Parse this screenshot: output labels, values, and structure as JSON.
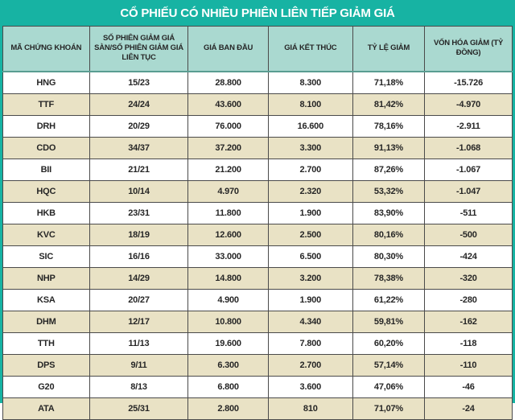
{
  "title": "CỔ PHIẾU CÓ NHIỀU PHIÊN LIÊN TIẾP GIẢM GIÁ",
  "colors": {
    "frame_teal": "#17b3a3",
    "title_text": "#ffffff",
    "header_bg": "#aad9d0",
    "row_bg": "#ffffff",
    "row_alt_bg": "#e9e2c5",
    "cell_border": "#4a4a4a",
    "text": "#262626"
  },
  "chart_data": {
    "type": "table",
    "title": "CỔ PHIẾU CÓ NHIỀU PHIÊN LIÊN TIẾP GIẢM GIÁ",
    "columns": [
      "MÃ CHỨNG KHOÁN",
      "SỐ PHIÊN GIẢM GIÁ SÀN/SỐ PHIÊN GIẢM GIÁ LIÊN TỤC",
      "GIÁ BAN ĐẦU",
      "GIÁ KẾT THÚC",
      "TỶ LỆ GIẢM",
      "VỐN HÓA GIẢM (TỶ ĐỒNG)"
    ],
    "rows": [
      [
        "HNG",
        "15/23",
        "28.800",
        "8.300",
        "71,18%",
        "-15.726"
      ],
      [
        "TTF",
        "24/24",
        "43.600",
        "8.100",
        "81,42%",
        "-4.970"
      ],
      [
        "DRH",
        "20/29",
        "76.000",
        "16.600",
        "78,16%",
        "-2.911"
      ],
      [
        "CDO",
        "34/37",
        "37.200",
        "3.300",
        "91,13%",
        "-1.068"
      ],
      [
        "BII",
        "21/21",
        "21.200",
        "2.700",
        "87,26%",
        "-1.067"
      ],
      [
        "HQC",
        "10/14",
        "4.970",
        "2.320",
        "53,32%",
        "-1.047"
      ],
      [
        "HKB",
        "23/31",
        "11.800",
        "1.900",
        "83,90%",
        "-511"
      ],
      [
        "KVC",
        "18/19",
        "12.600",
        "2.500",
        "80,16%",
        "-500"
      ],
      [
        "SIC",
        "16/16",
        "33.000",
        "6.500",
        "80,30%",
        "-424"
      ],
      [
        "NHP",
        "14/29",
        "14.800",
        "3.200",
        "78,38%",
        "-320"
      ],
      [
        "KSA",
        "20/27",
        "4.900",
        "1.900",
        "61,22%",
        "-280"
      ],
      [
        "DHM",
        "12/17",
        "10.800",
        "4.340",
        "59,81%",
        "-162"
      ],
      [
        "TTH",
        "11/13",
        "19.600",
        "7.800",
        "60,20%",
        "-118"
      ],
      [
        "DPS",
        "9/11",
        "6.300",
        "2.700",
        "57,14%",
        "-110"
      ],
      [
        "G20",
        "8/13",
        "6.800",
        "3.600",
        "47,06%",
        "-46"
      ],
      [
        "ATA",
        "25/31",
        "2.800",
        "810",
        "71,07%",
        "-24"
      ]
    ]
  }
}
